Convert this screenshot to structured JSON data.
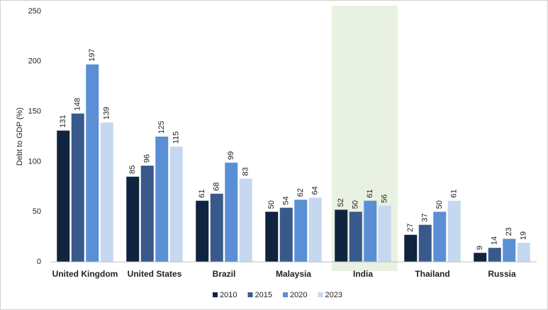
{
  "chart_data": {
    "type": "bar",
    "y_label": "Debt to GDP (%)",
    "categories": [
      "United Kingdom",
      "United States",
      "Brazil",
      "Malaysia",
      "India",
      "Thailand",
      "Russia"
    ],
    "series": [
      {
        "name": "2010",
        "color": "#10233f",
        "values": [
          131,
          85,
          61,
          50,
          52,
          27,
          9
        ]
      },
      {
        "name": "2015",
        "color": "#38598a",
        "values": [
          148,
          96,
          68,
          54,
          50,
          37,
          14
        ]
      },
      {
        "name": "2020",
        "color": "#5a8fd5",
        "values": [
          197,
          125,
          99,
          62,
          61,
          50,
          23
        ]
      },
      {
        "name": "2023",
        "color": "#c6d8ef",
        "values": [
          139,
          115,
          83,
          64,
          56,
          61,
          19
        ]
      }
    ],
    "ylim": [
      0,
      250
    ],
    "yticks": [
      0,
      50,
      100,
      150,
      200,
      250
    ],
    "grid": false,
    "highlight": "India",
    "highlight_color": "#e9f2e2",
    "legend": "bottom"
  }
}
